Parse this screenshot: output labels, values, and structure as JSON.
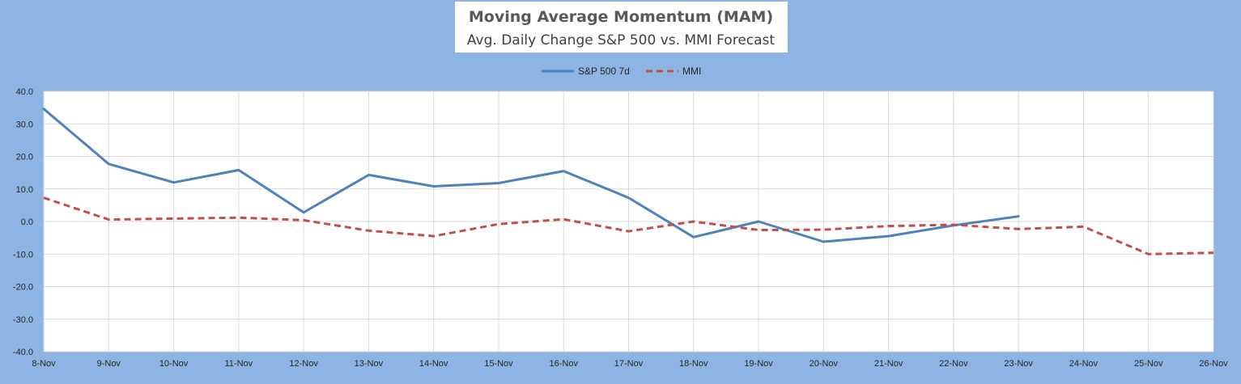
{
  "chart_data": {
    "type": "line",
    "title": "Moving Average Momentum (MAM)",
    "subtitle": "Avg. Daily Change S&P 500 vs. MMI Forecast",
    "categories": [
      "8-Nov",
      "9-Nov",
      "10-Nov",
      "11-Nov",
      "12-Nov",
      "13-Nov",
      "14-Nov",
      "15-Nov",
      "16-Nov",
      "17-Nov",
      "18-Nov",
      "19-Nov",
      "20-Nov",
      "21-Nov",
      "22-Nov",
      "23-Nov",
      "24-Nov",
      "25-Nov",
      "26-Nov"
    ],
    "ylim": [
      -40,
      40
    ],
    "yticks": [
      "40.0",
      "30.0",
      "20.0",
      "10.0",
      "0.0",
      "-10.0",
      "-20.0",
      "-30.0",
      "-40.0"
    ],
    "ytick_values": [
      40,
      30,
      20,
      10,
      0,
      -10,
      -20,
      -30,
      -40
    ],
    "grid": true,
    "legend_position": "top-center",
    "series": [
      {
        "name": "S&P 500 7d",
        "style": "solid",
        "color": "#4f81bd",
        "values": [
          34.6,
          17.7,
          12.0,
          15.8,
          2.8,
          14.3,
          10.8,
          11.8,
          15.5,
          7.3,
          -4.8,
          0.0,
          -6.2,
          -4.5,
          -1.2,
          1.6,
          null,
          null,
          null
        ]
      },
      {
        "name": "MMI",
        "style": "dashed",
        "color": "#c0504d",
        "values": [
          7.3,
          0.6,
          0.9,
          1.2,
          0.4,
          -2.8,
          -4.5,
          -0.8,
          0.7,
          -3.0,
          0.0,
          -2.6,
          -2.5,
          -1.4,
          -1.0,
          -2.3,
          -1.6,
          -10.0,
          -9.6
        ]
      }
    ]
  }
}
